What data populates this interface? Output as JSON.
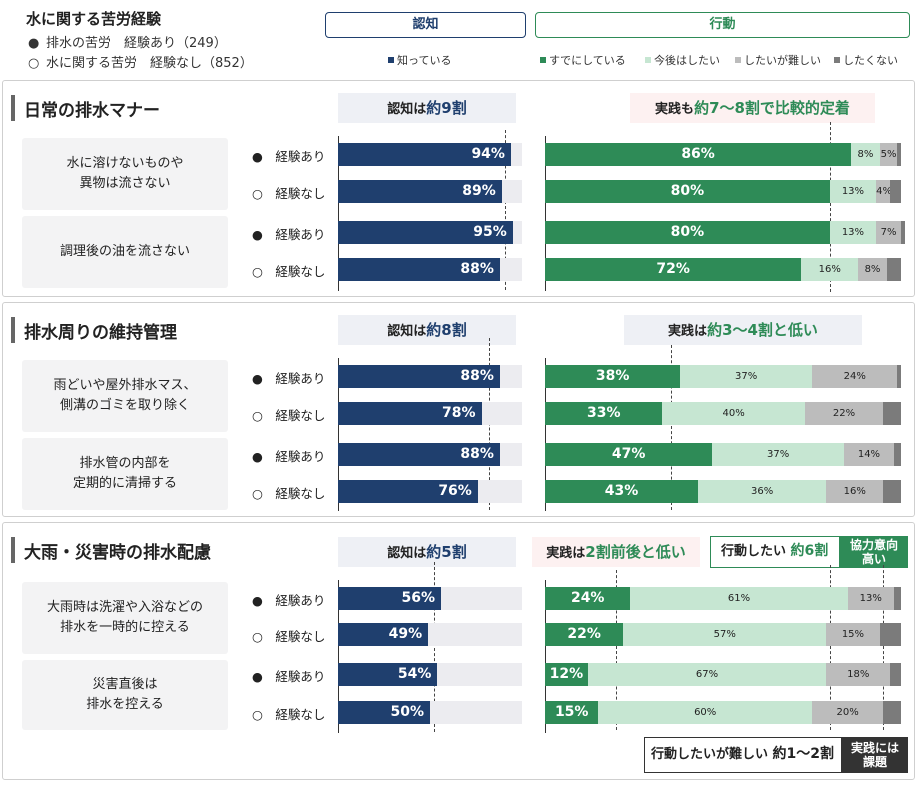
{
  "header": {
    "title": "水に関する苦労経験",
    "legend_yes": "排水の苦労　経験あり（249）",
    "legend_no": "水に関する苦労　経験なし（852）",
    "marker_yes": "●",
    "marker_no": "○",
    "awareness_box": "認知",
    "behavior_box": "行動"
  },
  "legend": {
    "awareness": "知っている",
    "behavior": [
      "すでにしている",
      "今後はしたい",
      "したいが難しい",
      "したくない"
    ]
  },
  "colors": {
    "awareness": "#1f3f6e",
    "behavior": [
      "#2e8b57",
      "#c6e6d2",
      "#bcbcbc",
      "#7b7b7b"
    ],
    "bar_bg": "#ececf0"
  },
  "group_labels": [
    "経験あり",
    "経験なし"
  ],
  "sections": [
    {
      "title": "日常の排水マナー",
      "awareness_callout": {
        "pre": "認知は",
        "hl": "約9割",
        "post": ""
      },
      "behavior_callout": {
        "pre": "実践も",
        "hl": "約7～8割で比較的定着",
        "post": ""
      },
      "items": [
        {
          "name": "水に溶けないものや\n異物は流さない"
        },
        {
          "name": "調理後の油を流さない"
        }
      ]
    },
    {
      "title": "排水周りの維持管理",
      "awareness_callout": {
        "pre": "認知は",
        "hl": "約8割",
        "post": ""
      },
      "behavior_callout": {
        "pre": "実践は",
        "hl": "約3～4割と低い",
        "post": ""
      },
      "items": [
        {
          "name": "雨どいや屋外排水マス、\n側溝のゴミを取り除く"
        },
        {
          "name": "排水管の内部を\n定期的に清掃する"
        }
      ]
    },
    {
      "title": "大雨・災害時の排水配慮",
      "awareness_callout": {
        "pre": "認知は",
        "hl": "約5割",
        "post": ""
      },
      "behavior_callout": {
        "pre": "実践は",
        "hl": "2割前後と低い",
        "post": ""
      },
      "note_top": {
        "pre": "行動したい",
        "hl": "約6割",
        "tag": "協力意向\n高い"
      },
      "note_bottom": {
        "pre": "行動したいが難しい",
        "hl": "約1～2割",
        "tag": "実践には\n課題"
      },
      "items": [
        {
          "name": "大雨時は洗濯や入浴などの\n排水を一時的に控える"
        },
        {
          "name": "災害直後は\n排水を控える"
        }
      ]
    }
  ],
  "chart_data": {
    "type": "bar",
    "units": "%",
    "series_awareness": "知っている",
    "series_behavior": [
      "すでにしている",
      "今後はしたい",
      "したいが難しい",
      "したくない"
    ],
    "rows": [
      {
        "item": "水に溶けないものや異物は流さない",
        "group": "経験あり",
        "aware": 94,
        "behavior": [
          86,
          8,
          5,
          1
        ]
      },
      {
        "item": "水に溶けないものや異物は流さない",
        "group": "経験なし",
        "aware": 89,
        "behavior": [
          80,
          13,
          4,
          3
        ]
      },
      {
        "item": "調理後の油を流さない",
        "group": "経験あり",
        "aware": 95,
        "behavior": [
          80,
          13,
          7,
          1
        ]
      },
      {
        "item": "調理後の油を流さない",
        "group": "経験なし",
        "aware": 88,
        "behavior": [
          72,
          16,
          8,
          4
        ]
      },
      {
        "item": "雨どいや屋外排水マス、側溝のゴミを取り除く",
        "group": "経験あり",
        "aware": 88,
        "behavior": [
          38,
          37,
          24,
          1
        ]
      },
      {
        "item": "雨どいや屋外排水マス、側溝のゴミを取り除く",
        "group": "経験なし",
        "aware": 78,
        "behavior": [
          33,
          40,
          22,
          5
        ]
      },
      {
        "item": "排水管の内部を定期的に清掃する",
        "group": "経験あり",
        "aware": 88,
        "behavior": [
          47,
          37,
          14,
          2
        ]
      },
      {
        "item": "排水管の内部を定期的に清掃する",
        "group": "経験なし",
        "aware": 76,
        "behavior": [
          43,
          36,
          16,
          5
        ]
      },
      {
        "item": "大雨時は洗濯や入浴などの排水を一時的に控える",
        "group": "経験あり",
        "aware": 56,
        "behavior": [
          24,
          61,
          13,
          2
        ]
      },
      {
        "item": "大雨時は洗濯や入浴などの排水を一時的に控える",
        "group": "経験なし",
        "aware": 49,
        "behavior": [
          22,
          57,
          15,
          6
        ]
      },
      {
        "item": "災害直後は排水を控える",
        "group": "経験あり",
        "aware": 54,
        "behavior": [
          12,
          67,
          18,
          3
        ]
      },
      {
        "item": "災害直後は排水を控える",
        "group": "経験なし",
        "aware": 50,
        "behavior": [
          15,
          60,
          20,
          5
        ]
      }
    ]
  }
}
